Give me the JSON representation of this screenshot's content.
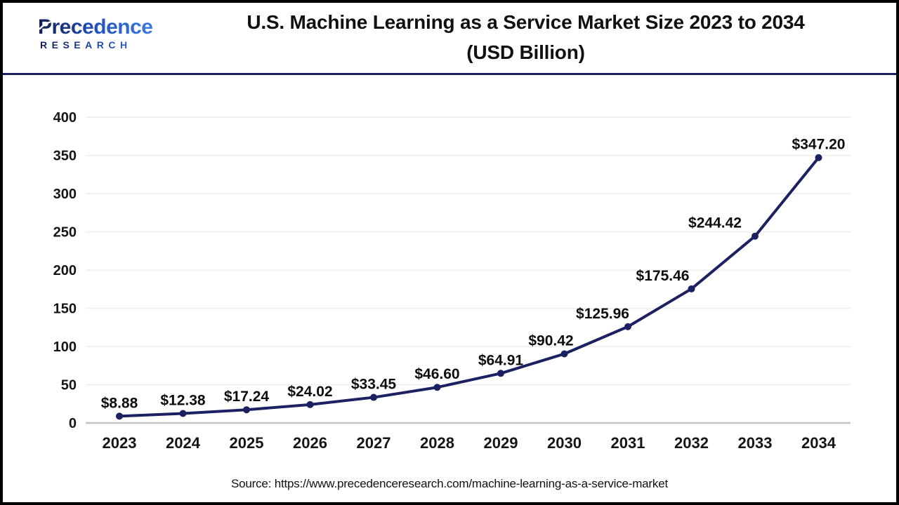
{
  "header": {
    "logo": {
      "wordmark": "Precedence",
      "subtext": "RESEARCH"
    },
    "title_line1": "U.S. Machine Learning as a Service Market Size 2023 to 2034",
    "title_line2": "(USD Billion)"
  },
  "chart_data": {
    "type": "line",
    "title": "U.S. Machine Learning as a Service Market Size 2023 to 2034 (USD Billion)",
    "categories": [
      "2023",
      "2024",
      "2025",
      "2026",
      "2027",
      "2028",
      "2029",
      "2030",
      "2031",
      "2032",
      "2033",
      "2034"
    ],
    "values": [
      8.88,
      12.38,
      17.24,
      24.02,
      33.45,
      46.6,
      64.91,
      90.42,
      125.96,
      175.46,
      244.42,
      347.2
    ],
    "point_labels": [
      "$8.88",
      "$12.38",
      "$17.24",
      "$24.02",
      "$33.45",
      "$46.60",
      "$64.91",
      "$90.42",
      "$125.96",
      "$175.46",
      "$244.42",
      "$347.20"
    ],
    "xlabel": "",
    "ylabel": "",
    "unit": "USD Billion",
    "ylim": [
      0,
      400
    ],
    "ytick_step": 50,
    "ytick_labels": [
      "0",
      "50",
      "100",
      "150",
      "200",
      "250",
      "300",
      "350",
      "400"
    ],
    "grid": true,
    "legend_position": "none",
    "line_color": "#1b2161",
    "grid_color": "#ededed",
    "axis_color": "#c4c4c4",
    "marker": "circle"
  },
  "footer": {
    "source": "Source: https://www.precedenceresearch.com/machine-learning-as-a-service-market"
  }
}
